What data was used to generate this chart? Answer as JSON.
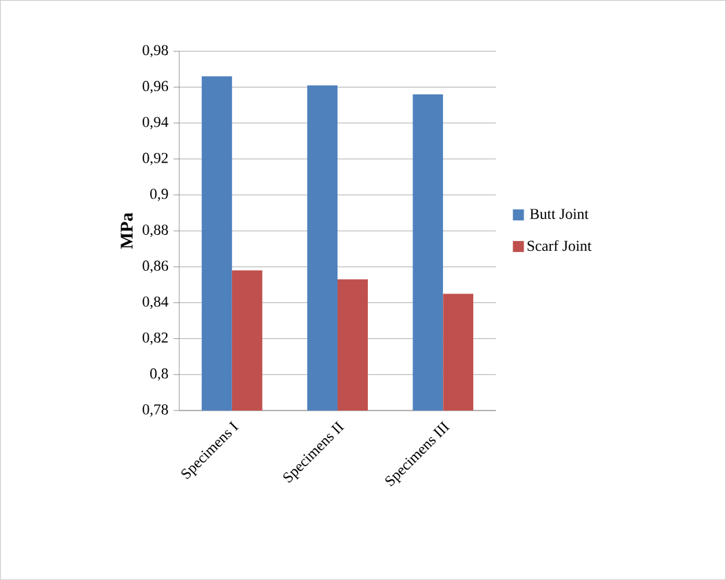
{
  "chart_data": {
    "type": "bar",
    "ylabel": "MPa",
    "categories": [
      "Specimens I",
      "Specimens II",
      "Specimens III"
    ],
    "series": [
      {
        "name": "Butt Joint",
        "color": "#4f81bd",
        "values": [
          0.966,
          0.961,
          0.956
        ]
      },
      {
        "name": "Scarf Joint",
        "color": "#c0504d",
        "values": [
          0.858,
          0.853,
          0.845
        ]
      }
    ],
    "ylim": [
      0.78,
      0.98
    ],
    "yticks": [
      {
        "value": 0.78,
        "label": "0,78"
      },
      {
        "value": 0.8,
        "label": "0,8"
      },
      {
        "value": 0.82,
        "label": "0,82"
      },
      {
        "value": 0.84,
        "label": "0,84"
      },
      {
        "value": 0.86,
        "label": "0,86"
      },
      {
        "value": 0.88,
        "label": "0,88"
      },
      {
        "value": 0.9,
        "label": "0,9"
      },
      {
        "value": 0.92,
        "label": "0,92"
      },
      {
        "value": 0.94,
        "label": "0,94"
      },
      {
        "value": 0.96,
        "label": "0,96"
      },
      {
        "value": 0.98,
        "label": "0,98"
      }
    ],
    "grid": "y",
    "legend": "right"
  }
}
